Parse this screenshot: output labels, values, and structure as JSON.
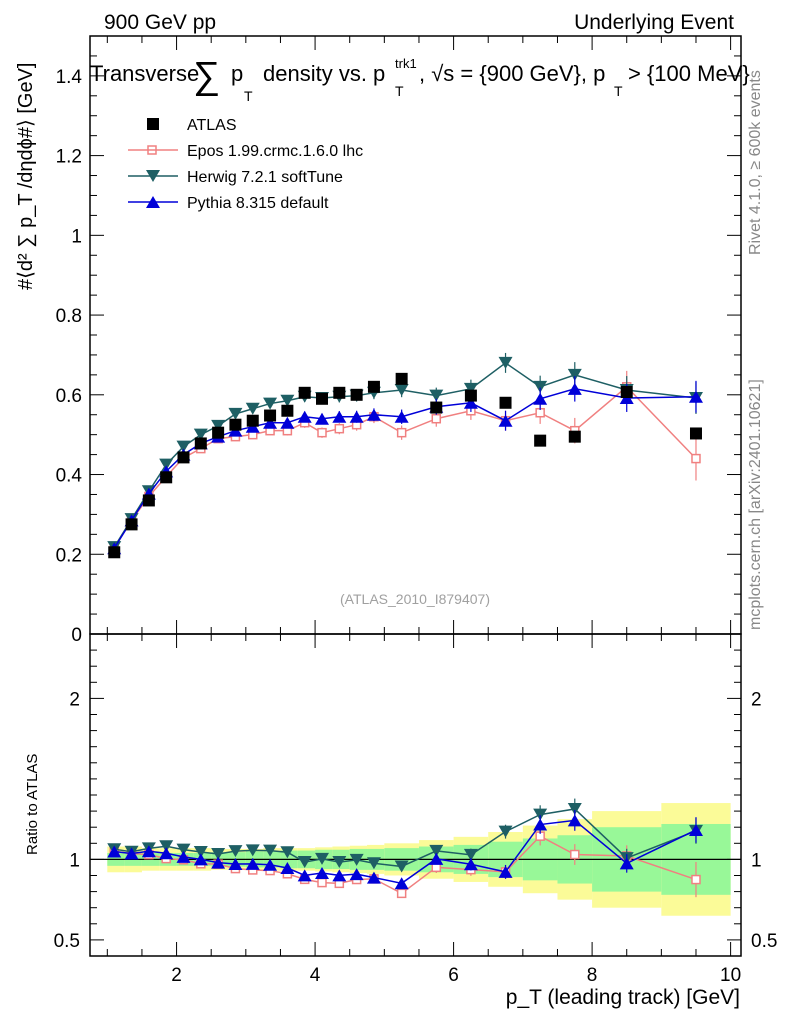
{
  "header": {
    "left": "900 GeV pp",
    "right": "Underlying Event"
  },
  "side_text": {
    "rivet": "Rivet 4.1.0, ≥ 600k events",
    "mcplots": "mcplots.cern.ch [arXiv:2401.10621]"
  },
  "watermark": "(ATLAS_2010_I879407)",
  "title_parts": {
    "lead": "Transverse",
    "sum": "∑",
    "p": "p",
    "T": "T",
    "mid": "density vs. p",
    "trk1": "trk1",
    "rest1": ", √s = {900 GeV}, p",
    "rest2": " > {100 MeV}"
  },
  "ylabel_main": "#⟨d² ∑ p_T /dηdϕ#⟩ [GeV]",
  "ylabel_ratio": "Ratio to ATLAS",
  "xlabel": "p_T (leading track) [GeV]",
  "colors": {
    "atlas": "#000000",
    "epos": "#f08080",
    "herwig": "#1e5f64",
    "pythia": "#0000d8",
    "band_inner": "#98f898",
    "band_outer": "#fbfb98"
  },
  "chart_data": {
    "type": "line",
    "x_unit": "GeV",
    "xlim": [
      0.75,
      10.15
    ],
    "main_ylim": [
      0,
      1.5
    ],
    "ratio_ylim": [
      0.4,
      2.4
    ],
    "x_ticks": [
      2,
      4,
      6,
      8,
      10
    ],
    "main_y_ticks": [
      0,
      0.2,
      0.4,
      0.6,
      0.8,
      1,
      1.2,
      1.4
    ],
    "main_y_tick_labels": [
      "0",
      "0.2",
      "0.4",
      "0.6",
      "0.8",
      "1",
      "1.2",
      "1.4"
    ],
    "ratio_y_ticks": [
      0.5,
      1,
      2
    ],
    "ratio_y_tick_labels": [
      "0.5",
      "1",
      "2"
    ],
    "x": [
      1.1,
      1.35,
      1.6,
      1.85,
      2.1,
      2.35,
      2.6,
      2.85,
      3.1,
      3.35,
      3.6,
      3.85,
      4.1,
      4.35,
      4.6,
      4.85,
      5.25,
      5.75,
      6.25,
      6.75,
      7.25,
      7.75,
      8.5,
      9.5
    ],
    "bin_edges": [
      1.0,
      1.25,
      1.5,
      1.75,
      2.0,
      2.25,
      2.5,
      2.75,
      3.0,
      3.25,
      3.5,
      3.75,
      4.0,
      4.25,
      4.5,
      4.75,
      5.0,
      5.5,
      6.0,
      6.5,
      7.0,
      7.5,
      8.0,
      9.0,
      10.0
    ],
    "data_series": {
      "name": "ATLAS",
      "values": [
        0.205,
        0.275,
        0.335,
        0.393,
        0.443,
        0.478,
        0.505,
        0.525,
        0.535,
        0.548,
        0.56,
        0.605,
        0.59,
        0.605,
        0.6,
        0.62,
        0.64,
        0.568,
        0.598,
        0.58,
        0.485,
        0.495,
        0.607,
        0.503
      ]
    },
    "series": [
      {
        "name": "Epos 1.99.crmc.1.6.0 lhc",
        "key": "epos",
        "marker": "open-square",
        "values": [
          0.215,
          0.285,
          0.345,
          0.395,
          0.442,
          0.465,
          0.49,
          0.495,
          0.5,
          0.51,
          0.51,
          0.53,
          0.505,
          0.515,
          0.525,
          0.545,
          0.505,
          0.54,
          0.56,
          0.535,
          0.555,
          0.51,
          0.62,
          0.44
        ],
        "err": [
          0.004,
          0.005,
          0.006,
          0.006,
          0.007,
          0.008,
          0.009,
          0.01,
          0.01,
          0.011,
          0.012,
          0.013,
          0.013,
          0.014,
          0.015,
          0.016,
          0.018,
          0.02,
          0.023,
          0.025,
          0.028,
          0.032,
          0.04,
          0.055
        ]
      },
      {
        "name": "Herwig 7.2.1 softTune",
        "key": "herwig",
        "marker": "down-triangle",
        "values": [
          0.218,
          0.288,
          0.358,
          0.425,
          0.47,
          0.5,
          0.522,
          0.552,
          0.565,
          0.578,
          0.585,
          0.595,
          0.592,
          0.595,
          0.598,
          0.605,
          0.612,
          0.598,
          0.615,
          0.68,
          0.62,
          0.65,
          0.612,
          0.592
        ],
        "err": [
          0.004,
          0.005,
          0.006,
          0.006,
          0.007,
          0.008,
          0.009,
          0.01,
          0.01,
          0.011,
          0.012,
          0.013,
          0.013,
          0.014,
          0.015,
          0.016,
          0.018,
          0.02,
          0.023,
          0.025,
          0.028,
          0.032,
          0.035,
          0.04
        ]
      },
      {
        "name": "Pythia 8.315 default",
        "key": "pythia",
        "marker": "up-triangle",
        "values": [
          0.215,
          0.285,
          0.352,
          0.408,
          0.45,
          0.478,
          0.495,
          0.51,
          0.52,
          0.53,
          0.53,
          0.545,
          0.54,
          0.545,
          0.545,
          0.55,
          0.545,
          0.57,
          0.58,
          0.535,
          0.59,
          0.615,
          0.592,
          0.595
        ],
        "err": [
          0.004,
          0.005,
          0.006,
          0.006,
          0.007,
          0.008,
          0.009,
          0.01,
          0.01,
          0.011,
          0.012,
          0.013,
          0.013,
          0.014,
          0.015,
          0.016,
          0.018,
          0.02,
          0.023,
          0.025,
          0.028,
          0.032,
          0.035,
          0.04
        ]
      }
    ],
    "ratio_band": {
      "inner_halfwidth": [
        0.04,
        0.04,
        0.04,
        0.04,
        0.04,
        0.04,
        0.045,
        0.045,
        0.05,
        0.05,
        0.055,
        0.055,
        0.06,
        0.06,
        0.065,
        0.065,
        0.07,
        0.08,
        0.09,
        0.11,
        0.13,
        0.15,
        0.2,
        0.22
      ],
      "outer_halfwidth": [
        0.08,
        0.08,
        0.07,
        0.07,
        0.07,
        0.07,
        0.065,
        0.065,
        0.065,
        0.07,
        0.07,
        0.07,
        0.075,
        0.08,
        0.085,
        0.09,
        0.1,
        0.12,
        0.14,
        0.17,
        0.21,
        0.25,
        0.3,
        0.35
      ]
    }
  }
}
